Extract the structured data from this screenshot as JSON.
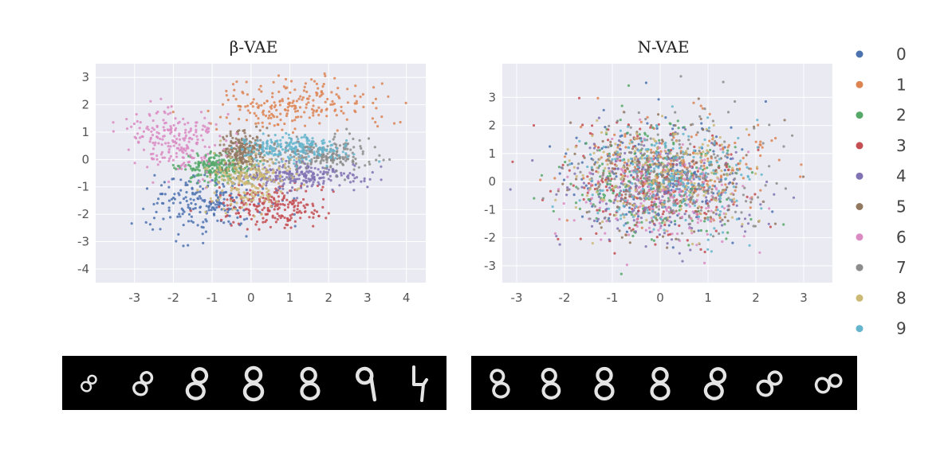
{
  "chart_data": [
    {
      "type": "scatter",
      "title": "β-VAE",
      "xlim": [
        -4,
        4.5
      ],
      "ylim": [
        -4.5,
        3.5
      ],
      "xticks": [
        "-3",
        "-2",
        "-1",
        "0",
        "1",
        "2",
        "3",
        "4"
      ],
      "yticks": [
        "3",
        "2",
        "1",
        "0",
        "-1",
        "-2",
        "-3",
        "-4"
      ],
      "grid": true,
      "series": [
        {
          "name": "0",
          "center": [
            -1.2,
            -1.6
          ],
          "spread": [
            0.75,
            0.55
          ]
        },
        {
          "name": "1",
          "center": [
            1.3,
            2.0
          ],
          "spread": [
            1.1,
            0.45
          ]
        },
        {
          "name": "2",
          "center": [
            -0.9,
            -0.3
          ],
          "spread": [
            0.45,
            0.25
          ]
        },
        {
          "name": "3",
          "center": [
            0.6,
            -1.7
          ],
          "spread": [
            0.75,
            0.4
          ]
        },
        {
          "name": "4",
          "center": [
            1.3,
            -0.6
          ],
          "spread": [
            0.75,
            0.25
          ]
        },
        {
          "name": "5",
          "center": [
            -0.2,
            0.3
          ],
          "spread": [
            0.3,
            0.35
          ]
        },
        {
          "name": "6",
          "center": [
            -2.0,
            0.7
          ],
          "spread": [
            0.65,
            0.55
          ]
        },
        {
          "name": "7",
          "center": [
            1.8,
            0.2
          ],
          "spread": [
            0.7,
            0.3
          ]
        },
        {
          "name": "8",
          "center": [
            0.0,
            -0.7
          ],
          "spread": [
            0.5,
            0.5
          ]
        },
        {
          "name": "9",
          "center": [
            1.0,
            0.4
          ],
          "spread": [
            0.7,
            0.25
          ]
        }
      ]
    },
    {
      "type": "scatter",
      "title": "N-VAE",
      "xlim": [
        -3.3,
        3.6
      ],
      "ylim": [
        -3.6,
        4.2
      ],
      "xticks": [
        "-3",
        "-2",
        "-1",
        "0",
        "1",
        "2",
        "3"
      ],
      "yticks": [
        "3",
        "2",
        "1",
        "0",
        "-1",
        "-2",
        "-3"
      ],
      "grid": true,
      "series": [
        {
          "name": "0",
          "center": [
            0.0,
            0.2
          ],
          "spread": [
            1.0,
            1.0
          ]
        },
        {
          "name": "1",
          "center": [
            0.4,
            0.5
          ],
          "spread": [
            1.0,
            0.9
          ]
        },
        {
          "name": "2",
          "center": [
            0.0,
            0.0
          ],
          "spread": [
            1.0,
            1.0
          ]
        },
        {
          "name": "3",
          "center": [
            -0.2,
            -0.2
          ],
          "spread": [
            1.0,
            1.0
          ]
        },
        {
          "name": "4",
          "center": [
            0.0,
            -0.3
          ],
          "spread": [
            1.0,
            1.0
          ]
        },
        {
          "name": "5",
          "center": [
            0.1,
            0.1
          ],
          "spread": [
            1.0,
            1.0
          ]
        },
        {
          "name": "6",
          "center": [
            0.0,
            -0.4
          ],
          "spread": [
            0.9,
            0.9
          ]
        },
        {
          "name": "7",
          "center": [
            0.2,
            0.2
          ],
          "spread": [
            1.0,
            1.0
          ]
        },
        {
          "name": "8",
          "center": [
            0.0,
            0.3
          ],
          "spread": [
            0.9,
            0.9
          ]
        },
        {
          "name": "9",
          "center": [
            0.1,
            0.0
          ],
          "spread": [
            0.9,
            0.9
          ]
        }
      ]
    }
  ],
  "legend": {
    "placement": "right",
    "items": [
      {
        "label": "0",
        "color": "#4c72b0"
      },
      {
        "label": "1",
        "color": "#dd8452"
      },
      {
        "label": "2",
        "color": "#55a868"
      },
      {
        "label": "3",
        "color": "#c44e52"
      },
      {
        "label": "4",
        "color": "#8172b3"
      },
      {
        "label": "5",
        "color": "#937860"
      },
      {
        "label": "6",
        "color": "#da8bc3"
      },
      {
        "label": "7",
        "color": "#8c8c8c"
      },
      {
        "label": "8",
        "color": "#ccb974"
      },
      {
        "label": "9",
        "color": "#64b5cd"
      }
    ]
  },
  "reconstruction_strips": [
    {
      "panel": "β-VAE",
      "digit_count": 7
    },
    {
      "panel": "N-VAE",
      "digit_count": 7
    }
  ]
}
